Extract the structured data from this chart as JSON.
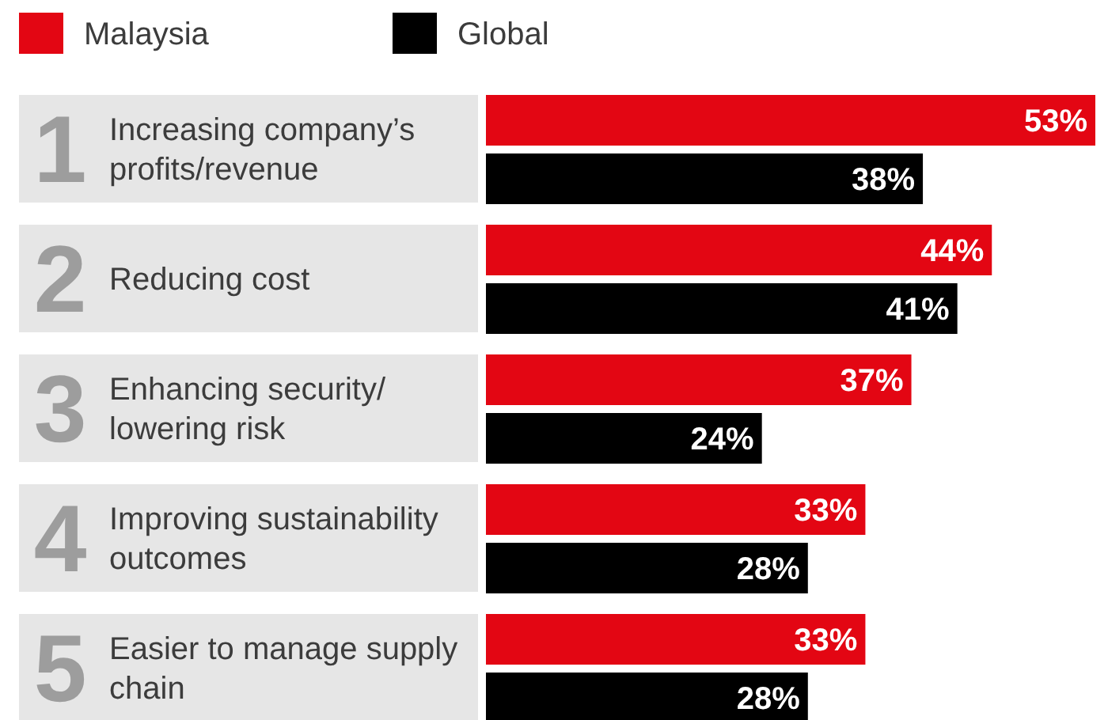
{
  "chart_data": {
    "type": "bar",
    "orientation": "horizontal",
    "legend": "top left",
    "categories": [
      "Increasing company’s profits/revenue",
      "Reducing cost",
      "Enhancing security/ lowering risk",
      "Improving sustainability outcomes",
      "Easier to manage supply chain"
    ],
    "annotations": [
      "1",
      "2",
      "3",
      "4",
      "5"
    ],
    "series": [
      {
        "name": "Malaysia",
        "color": "#e30613",
        "values": [
          53,
          44,
          37,
          33,
          33
        ],
        "value_labels": [
          "53%",
          "44%",
          "37%",
          "33%",
          "33%"
        ]
      },
      {
        "name": "Global",
        "color": "#000000",
        "values": [
          38,
          41,
          24,
          28,
          28
        ],
        "value_labels": [
          "38%",
          "41%",
          "24%",
          "28%",
          "28%"
        ]
      }
    ]
  }
}
